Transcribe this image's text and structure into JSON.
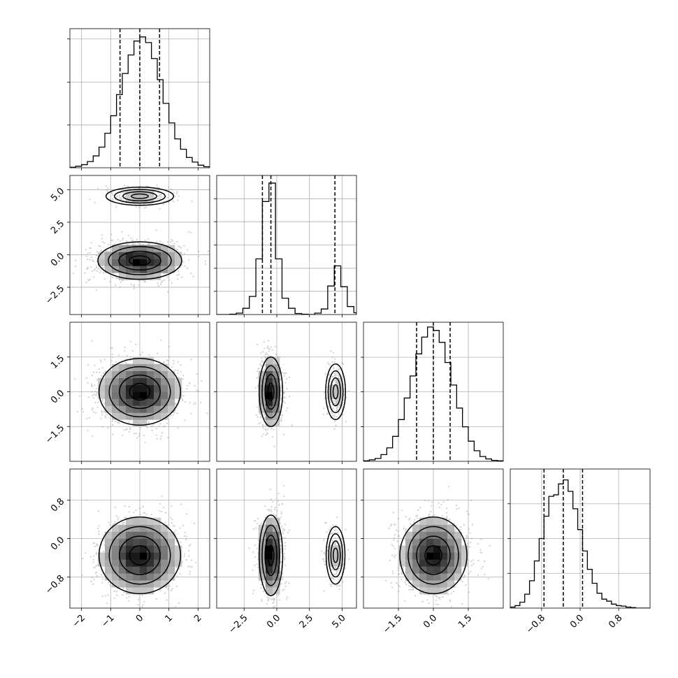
{
  "chart_data": {
    "type": "corner",
    "parameters": 4,
    "grid": true,
    "colors": {
      "axes": "#000000",
      "grid": "#b0b0b0",
      "scatter": "#9a9a9a",
      "density_min": "#f4f4f4",
      "density_max": "#000000",
      "contour": "#000000",
      "hist": "#000000"
    },
    "diagonal": [
      {
        "xlim": [
          -2.4,
          2.4
        ],
        "ticks": [
          -2,
          -1,
          0,
          1,
          2
        ],
        "tick_labels": [
          "−2",
          "−1",
          "0",
          "1",
          "2"
        ],
        "quantiles": [
          -0.68,
          0.0,
          0.68
        ],
        "hist": {
          "bin_edges": [
            -2.4,
            -2.2,
            -2.0,
            -1.8,
            -1.6,
            -1.4,
            -1.2,
            -1.0,
            -0.8,
            -0.6,
            -0.4,
            -0.2,
            0.0,
            0.2,
            0.4,
            0.6,
            0.8,
            1.0,
            1.2,
            1.4,
            1.6,
            1.8,
            2.0,
            2.2,
            2.4
          ],
          "counts": [
            1,
            3,
            6,
            12,
            23,
            40,
            67,
            101,
            142,
            183,
            219,
            246,
            254,
            243,
            212,
            171,
            125,
            87,
            56,
            36,
            20,
            11,
            5,
            2
          ],
          "ymax": 270,
          "yticks": [
            83,
            166,
            250
          ]
        }
      },
      {
        "xlim": [
          -4.6,
          6.1
        ],
        "ticks": [
          -2.5,
          0.0,
          2.5,
          5.0
        ],
        "tick_labels": [
          "−2.5",
          "0.0",
          "2.5",
          "5.0"
        ],
        "quantiles": [
          -1.1,
          -0.45,
          4.45
        ],
        "hist": {
          "bin_edges": [
            -4.6,
            -4.1,
            -3.6,
            -3.1,
            -2.6,
            -2.1,
            -1.6,
            -1.1,
            -0.6,
            -0.1,
            0.4,
            0.9,
            1.4,
            1.9,
            2.4,
            2.9,
            3.4,
            3.9,
            4.4,
            4.9,
            5.4,
            5.9,
            6.1
          ],
          "counts": [
            0,
            0,
            1,
            4,
            18,
            52,
            160,
            325,
            378,
            160,
            47,
            18,
            3,
            1,
            0,
            4,
            16,
            82,
            140,
            80,
            23,
            5
          ],
          "ymax": 400,
          "yticks": [
            67,
            133,
            200,
            267,
            333
          ]
        }
      },
      {
        "xlim": [
          -3.0,
          3.0
        ],
        "ticks": [
          -1.5,
          0.0,
          1.5
        ],
        "tick_labels": [
          "−1.5",
          "0.0",
          "1.5"
        ],
        "quantiles": [
          -0.72,
          0.0,
          0.72
        ],
        "hist": {
          "bin_edges": [
            -3.0,
            -2.75,
            -2.5,
            -2.25,
            -2.0,
            -1.75,
            -1.5,
            -1.25,
            -1.0,
            -0.75,
            -0.5,
            -0.25,
            0.0,
            0.25,
            0.5,
            0.75,
            1.0,
            1.25,
            1.5,
            1.75,
            2.0,
            2.25,
            2.5,
            2.75,
            3.0
          ],
          "counts": [
            1,
            3,
            6,
            14,
            28,
            52,
            87,
            132,
            178,
            224,
            259,
            280,
            273,
            248,
            206,
            159,
            111,
            72,
            42,
            22,
            10,
            5,
            2,
            1
          ],
          "ymax": 290,
          "yticks": [
            72,
            145,
            217
          ]
        }
      },
      {
        "xlim": [
          -1.45,
          1.45
        ],
        "ticks": [
          -0.8,
          0.0,
          0.8
        ],
        "tick_labels": [
          "−0.8",
          "0.0",
          "0.8"
        ],
        "quantiles": [
          -0.75,
          -0.35,
          0.05
        ],
        "hist": {
          "bin_edges": [
            -1.45,
            -1.35,
            -1.25,
            -1.15,
            -1.05,
            -0.95,
            -0.85,
            -0.75,
            -0.65,
            -0.55,
            -0.45,
            -0.35,
            -0.25,
            -0.15,
            -0.05,
            0.05,
            0.15,
            0.25,
            0.35,
            0.45,
            0.55,
            0.65,
            0.75,
            0.85,
            0.95,
            1.05,
            1.15,
            1.25,
            1.35,
            1.45
          ],
          "counts": [
            2,
            5,
            12,
            28,
            55,
            95,
            140,
            185,
            225,
            228,
            250,
            258,
            235,
            200,
            158,
            115,
            78,
            50,
            30,
            18,
            14,
            8,
            5,
            4,
            2,
            1,
            0,
            0,
            0
          ],
          "ymax": 280,
          "yticks": [
            70,
            140,
            210
          ]
        }
      }
    ],
    "pairs": [
      {
        "row": 1,
        "col": 0,
        "ylim": [
          -4.6,
          6.1
        ],
        "yticks": [
          -2.5,
          0.0,
          2.5,
          5.0
        ],
        "ytick_labels": [
          "−2.5",
          "0.0",
          "2.5",
          "5.0"
        ],
        "blobs": [
          {
            "cx": 0.0,
            "cy": -0.45,
            "sx": 0.72,
            "sy": 0.72,
            "w": 0.8
          },
          {
            "cx": 0.0,
            "cy": 4.5,
            "sx": 0.58,
            "sy": 0.35,
            "w": 0.2
          }
        ]
      },
      {
        "row": 2,
        "col": 0,
        "ylim": [
          -3.0,
          3.0
        ],
        "yticks": [
          -1.5,
          0.0,
          1.5
        ],
        "ytick_labels": [
          "−1.5",
          "0.0",
          "1.5"
        ],
        "blobs": [
          {
            "cx": 0.0,
            "cy": 0.0,
            "sx": 0.7,
            "sy": 0.72,
            "w": 1.0
          }
        ]
      },
      {
        "row": 2,
        "col": 1,
        "blobs": [
          {
            "cx": -0.45,
            "cy": 0.0,
            "sx": 0.45,
            "sy": 0.75,
            "w": 0.8
          },
          {
            "cx": 4.5,
            "cy": 0.0,
            "sx": 0.38,
            "sy": 0.6,
            "w": 0.2
          }
        ]
      },
      {
        "row": 3,
        "col": 0,
        "ylim": [
          -1.45,
          1.45
        ],
        "yticks": [
          -0.8,
          0.0,
          0.8
        ],
        "ytick_labels": [
          "−0.8",
          "0.0",
          "0.8"
        ],
        "blobs": [
          {
            "cx": 0.0,
            "cy": -0.35,
            "sx": 0.7,
            "sy": 0.4,
            "w": 1.0
          }
        ]
      },
      {
        "row": 3,
        "col": 1,
        "blobs": [
          {
            "cx": -0.45,
            "cy": -0.35,
            "sx": 0.45,
            "sy": 0.42,
            "w": 0.8
          },
          {
            "cx": 4.5,
            "cy": -0.35,
            "sx": 0.36,
            "sy": 0.3,
            "w": 0.2
          }
        ]
      },
      {
        "row": 3,
        "col": 2,
        "blobs": [
          {
            "cx": 0.0,
            "cy": -0.35,
            "sx": 0.72,
            "sy": 0.4,
            "w": 1.0
          }
        ]
      }
    ]
  }
}
